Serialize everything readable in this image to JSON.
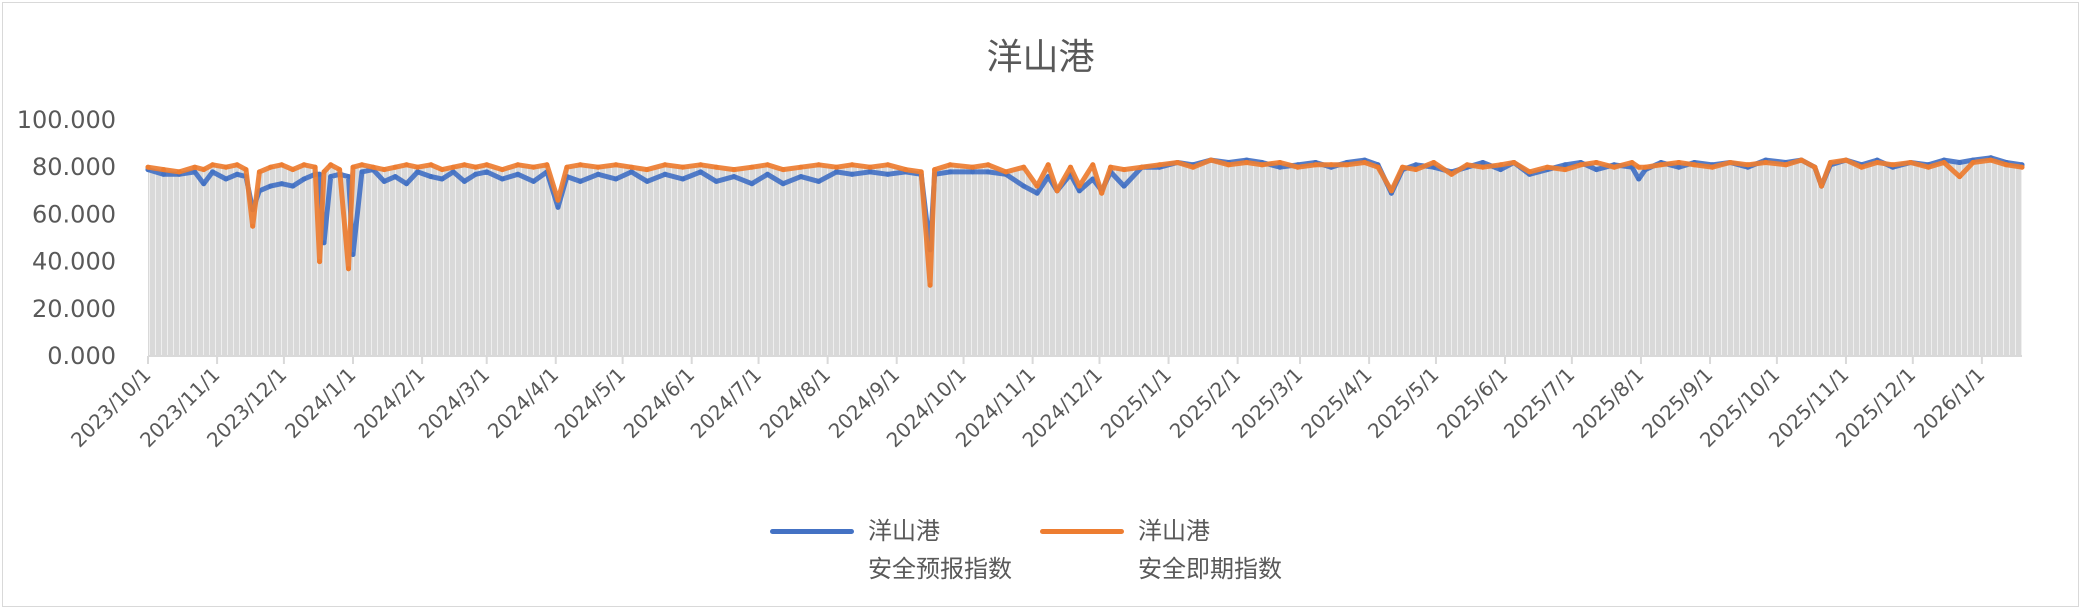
{
  "chart_data": {
    "type": "line",
    "title": "洋山港",
    "xlabel": "",
    "ylabel": "",
    "ylim": [
      0,
      100
    ],
    "y_ticks": [
      "0.000",
      "20.000",
      "40.000",
      "60.000",
      "80.000",
      "100.000"
    ],
    "x_tick_labels": [
      "2023/10/1",
      "2023/11/1",
      "2023/12/1",
      "2024/1/1",
      "2024/2/1",
      "2024/3/1",
      "2024/4/1",
      "2024/5/1",
      "2024/6/1",
      "2024/7/1",
      "2024/8/1",
      "2024/9/1",
      "2024/10/1",
      "2024/11/1",
      "2024/12/1",
      "2025/1/1",
      "2025/2/1",
      "2025/3/1",
      "2025/4/1",
      "2025/5/1",
      "2025/6/1",
      "2025/7/1",
      "2025/8/1",
      "2025/9/1",
      "2025/10/1",
      "2025/11/1",
      "2025/12/1",
      "2026/1/1"
    ],
    "grid": false,
    "legend_position": "bottom",
    "x": [
      "2023-10-01",
      "2023-10-08",
      "2023-10-15",
      "2023-10-22",
      "2023-10-26",
      "2023-10-30",
      "2023-11-05",
      "2023-11-10",
      "2023-11-14",
      "2023-11-17",
      "2023-11-20",
      "2023-11-25",
      "2023-11-30",
      "2023-12-05",
      "2023-12-10",
      "2023-12-15",
      "2023-12-17",
      "2023-12-19",
      "2023-12-22",
      "2023-12-26",
      "2023-12-30",
      "2024-01-01",
      "2024-01-05",
      "2024-01-10",
      "2024-01-15",
      "2024-01-20",
      "2024-01-25",
      "2024-01-30",
      "2024-02-05",
      "2024-02-10",
      "2024-02-15",
      "2024-02-20",
      "2024-02-25",
      "2024-03-01",
      "2024-03-08",
      "2024-03-15",
      "2024-03-22",
      "2024-03-28",
      "2024-04-02",
      "2024-04-06",
      "2024-04-12",
      "2024-04-20",
      "2024-04-28",
      "2024-05-05",
      "2024-05-12",
      "2024-05-20",
      "2024-05-28",
      "2024-06-05",
      "2024-06-12",
      "2024-06-20",
      "2024-06-28",
      "2024-07-05",
      "2024-07-12",
      "2024-07-20",
      "2024-07-28",
      "2024-08-05",
      "2024-08-12",
      "2024-08-20",
      "2024-08-28",
      "2024-09-05",
      "2024-09-12",
      "2024-09-16",
      "2024-09-18",
      "2024-09-25",
      "2024-10-05",
      "2024-10-12",
      "2024-10-20",
      "2024-10-28",
      "2024-11-03",
      "2024-11-08",
      "2024-11-12",
      "2024-11-18",
      "2024-11-22",
      "2024-11-28",
      "2024-12-02",
      "2024-12-06",
      "2024-12-12",
      "2024-12-20",
      "2024-12-28",
      "2025-01-05",
      "2025-01-12",
      "2025-01-20",
      "2025-01-28",
      "2025-02-05",
      "2025-02-12",
      "2025-02-20",
      "2025-02-28",
      "2025-03-08",
      "2025-03-15",
      "2025-03-22",
      "2025-03-30",
      "2025-04-05",
      "2025-04-11",
      "2025-04-16",
      "2025-04-22",
      "2025-04-30",
      "2025-05-08",
      "2025-05-15",
      "2025-05-22",
      "2025-05-30",
      "2025-06-05",
      "2025-06-12",
      "2025-06-20",
      "2025-06-28",
      "2025-07-05",
      "2025-07-12",
      "2025-07-20",
      "2025-07-28",
      "2025-07-31",
      "2025-08-03",
      "2025-08-10",
      "2025-08-18",
      "2025-08-25",
      "2025-09-02",
      "2025-09-10",
      "2025-09-18",
      "2025-09-26",
      "2025-10-05",
      "2025-10-12",
      "2025-10-18",
      "2025-10-21",
      "2025-10-25",
      "2025-11-01",
      "2025-11-08",
      "2025-11-15",
      "2025-11-22",
      "2025-11-30",
      "2025-12-08",
      "2025-12-15",
      "2025-12-22",
      "2025-12-28",
      "2026-01-05",
      "2026-01-12",
      "2026-01-19"
    ],
    "series": [
      {
        "name": "洋山港\n安全预报指数",
        "name_line1": "洋山港",
        "name_line2": "安全预报指数",
        "color": "#4472c4",
        "values": [
          79,
          77,
          77,
          78,
          73,
          78,
          75,
          77,
          76,
          62,
          70,
          72,
          73,
          72,
          75,
          77,
          77,
          48,
          76,
          77,
          76,
          43,
          78,
          79,
          74,
          76,
          73,
          78,
          76,
          75,
          78,
          74,
          77,
          78,
          75,
          77,
          74,
          78,
          63,
          76,
          74,
          77,
          75,
          78,
          74,
          77,
          75,
          78,
          74,
          76,
          73,
          77,
          73,
          76,
          74,
          78,
          77,
          78,
          77,
          78,
          77,
          45,
          77,
          78,
          78,
          78,
          77,
          72,
          69,
          76,
          70,
          77,
          70,
          75,
          70,
          78,
          72,
          80,
          80,
          82,
          81,
          83,
          82,
          83,
          82,
          80,
          81,
          82,
          80,
          82,
          83,
          81,
          69,
          79,
          81,
          80,
          78,
          80,
          82,
          79,
          82,
          77,
          79,
          81,
          82,
          79,
          81,
          80,
          75,
          79,
          82,
          80,
          82,
          81,
          82,
          80,
          83,
          82,
          83,
          80,
          72,
          81,
          83,
          81,
          83,
          80,
          82,
          81,
          83,
          82,
          83,
          84,
          82,
          81
        ]
      },
      {
        "name": "洋山港\n安全即期指数",
        "name_line1": "洋山港",
        "name_line2": "安全即期指数",
        "color": "#ed7d31",
        "values": [
          80,
          79,
          78,
          80,
          79,
          81,
          80,
          81,
          79,
          55,
          78,
          80,
          81,
          79,
          81,
          80,
          40,
          78,
          81,
          79,
          37,
          80,
          81,
          80,
          79,
          80,
          81,
          80,
          81,
          79,
          80,
          81,
          80,
          81,
          79,
          81,
          80,
          81,
          66,
          80,
          81,
          80,
          81,
          80,
          79,
          81,
          80,
          81,
          80,
          79,
          80,
          81,
          79,
          80,
          81,
          80,
          81,
          80,
          81,
          79,
          78,
          30,
          79,
          81,
          80,
          81,
          78,
          80,
          72,
          81,
          70,
          80,
          72,
          81,
          69,
          80,
          79,
          80,
          81,
          82,
          80,
          83,
          81,
          82,
          81,
          82,
          80,
          81,
          81,
          81,
          82,
          80,
          70,
          80,
          79,
          82,
          77,
          81,
          80,
          81,
          82,
          78,
          80,
          79,
          81,
          82,
          80,
          82,
          80,
          80,
          81,
          82,
          81,
          80,
          82,
          81,
          82,
          81,
          83,
          80,
          72,
          82,
          83,
          80,
          82,
          81,
          82,
          80,
          82,
          76,
          82,
          83,
          81,
          80
        ]
      }
    ]
  }
}
